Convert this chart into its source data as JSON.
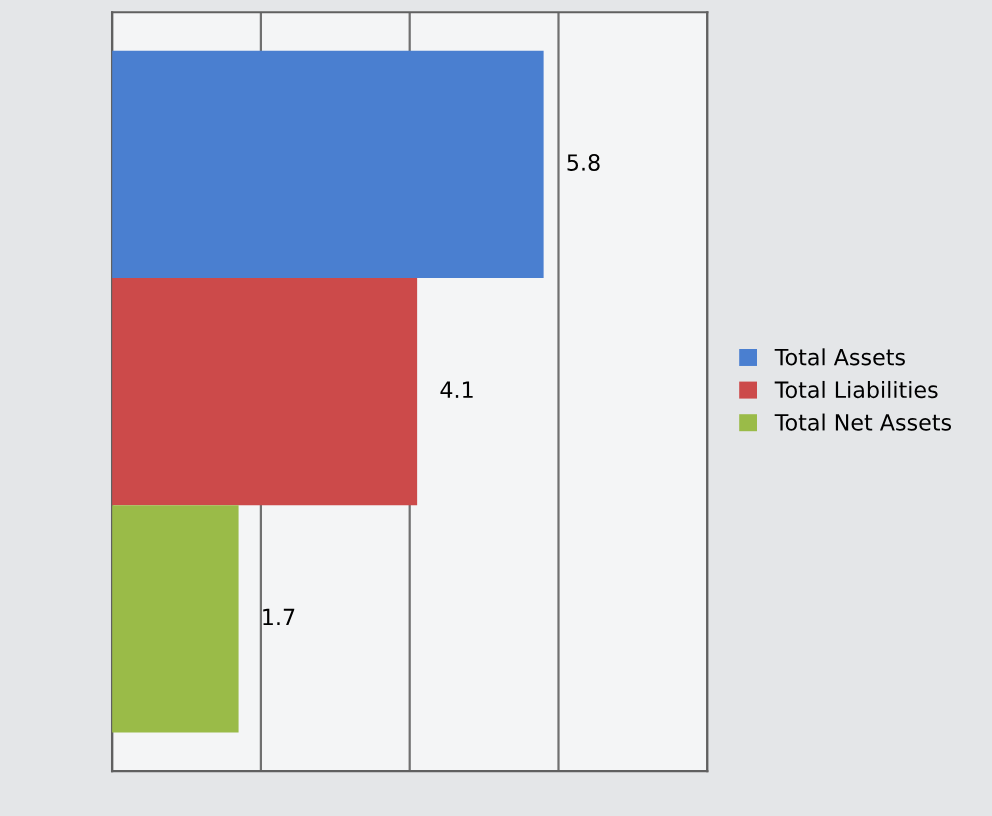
{
  "chart_data": {
    "type": "bar",
    "orientation": "horizontal",
    "stacked": true,
    "categories": [
      null,
      null,
      null
    ],
    "series": [
      {
        "name": "Total Assets",
        "color": "#4a7fd0",
        "values": [
          5.8,
          null,
          null
        ]
      },
      {
        "name": "Total Liabilities",
        "color": "#cc4a4a",
        "values": [
          null,
          4.1,
          null
        ]
      },
      {
        "name": "Total Net Assets",
        "color": "#9abb48",
        "values": [
          null,
          null,
          1.7
        ]
      }
    ],
    "xlim": [
      0,
      8
    ],
    "xticks": [
      {
        "value": 0,
        "label": null
      },
      {
        "value": 2,
        "label": null
      },
      {
        "value": 4,
        "label": null
      },
      {
        "value": 6,
        "label": null
      },
      {
        "value": 8,
        "label": null
      }
    ],
    "grid": "x",
    "legend": "right",
    "data_labels": true
  }
}
